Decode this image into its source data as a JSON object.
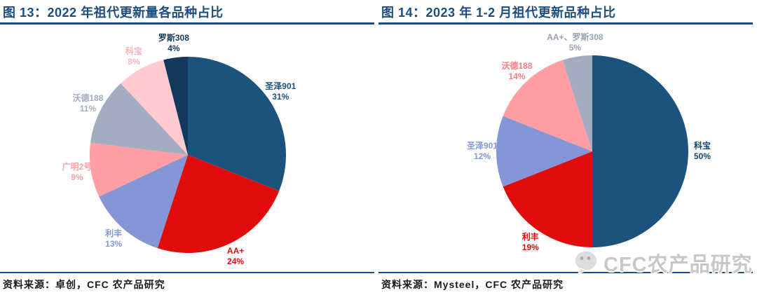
{
  "theme": {
    "accent": "#1B4E7E",
    "background": "#FFFFFF",
    "source_text_color": "#1A1A1A",
    "watermark_color": "#C8C8C8"
  },
  "watermark": {
    "text": "CFC农产品研究",
    "icon": "wechat-icon"
  },
  "chart_data": [
    {
      "type": "pie",
      "title": "图 13：2022 年祖代更新量各品种占比",
      "source": "资料来源：卓创，CFC 农产品研究",
      "start_angle_deg": 0,
      "direction": "clockwise",
      "legend_position": "outside-labels",
      "slices": [
        {
          "label": "圣泽901",
          "value": 31,
          "color": "#1B537C",
          "label_color": "#1B537C"
        },
        {
          "label": "AA+",
          "value": 24,
          "color": "#E00C0C",
          "label_color": "#E00C0C"
        },
        {
          "label": "利丰",
          "value": 13,
          "color": "#8496D6",
          "label_color": "#8496D6"
        },
        {
          "label": "广明2号",
          "value": 9,
          "color": "#FF9EA3",
          "label_color": "#FF9EA3"
        },
        {
          "label": "沃德188",
          "value": 11,
          "color": "#A3ACC0",
          "label_color": "#A3ACC0"
        },
        {
          "label": "科宝",
          "value": 8,
          "color": "#FFCBD1",
          "label_color": "#FFB3BC"
        },
        {
          "label": "罗斯308",
          "value": 4,
          "color": "#12395B",
          "label_color": "#12395B"
        }
      ]
    },
    {
      "type": "pie",
      "title": "图 14：2023 年 1-2 月祖代更新品种占比",
      "source": "资料来源：Mysteel，CFC 农产品研究",
      "start_angle_deg": 0,
      "direction": "clockwise",
      "legend_position": "outside-labels",
      "slices": [
        {
          "label": "科宝",
          "value": 50,
          "color": "#1B537C",
          "label_color": "#14466B"
        },
        {
          "label": "利丰",
          "value": 19,
          "color": "#E00C0C",
          "label_color": "#E00C0C"
        },
        {
          "label": "圣泽901",
          "value": 12,
          "color": "#8496D6",
          "label_color": "#8496D6"
        },
        {
          "label": "沃德188",
          "value": 14,
          "color": "#FF9EA3",
          "label_color": "#F87D82"
        },
        {
          "label": "AA+、罗斯308",
          "value": 5,
          "color": "#A3ACC0",
          "label_color": "#98A3B5"
        }
      ]
    }
  ]
}
